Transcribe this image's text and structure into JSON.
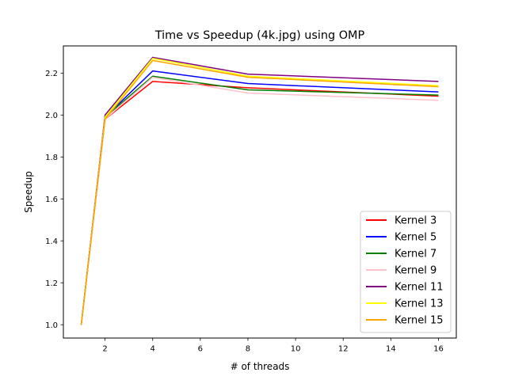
{
  "chart_data": {
    "type": "line",
    "title": "Time vs Speedup (4k.jpg) using OMP",
    "xlabel": "# of threads",
    "ylabel": "Speedup",
    "x": [
      1,
      2,
      4,
      8,
      16
    ],
    "xlim": [
      0.25,
      16.75
    ],
    "ylim": [
      0.9365,
      2.3295
    ],
    "xticks": [
      2,
      4,
      6,
      8,
      10,
      12,
      14,
      16
    ],
    "yticks": [
      1.0,
      1.2,
      1.4,
      1.6,
      1.8,
      2.0,
      2.2
    ],
    "grid": false,
    "legend_position": "lower right",
    "series": [
      {
        "name": "Kernel 3",
        "color": "#ff0000",
        "values": [
          1.0,
          1.98,
          2.16,
          2.13,
          2.09
        ]
      },
      {
        "name": "Kernel 5",
        "color": "#0000ff",
        "values": [
          1.0,
          1.99,
          2.21,
          2.15,
          2.11
        ]
      },
      {
        "name": "Kernel 7",
        "color": "#008000",
        "values": [
          1.0,
          1.99,
          2.185,
          2.12,
          2.095
        ]
      },
      {
        "name": "Kernel 9",
        "color": "#ffc0cb",
        "values": [
          1.0,
          1.98,
          2.18,
          2.105,
          2.07
        ]
      },
      {
        "name": "Kernel 11",
        "color": "#800080",
        "values": [
          1.0,
          2.0,
          2.275,
          2.195,
          2.16
        ]
      },
      {
        "name": "Kernel 13",
        "color": "#ffff00",
        "values": [
          1.0,
          1.99,
          2.27,
          2.185,
          2.14
        ]
      },
      {
        "name": "Kernel 15",
        "color": "#ffa500",
        "values": [
          1.0,
          1.98,
          2.26,
          2.18,
          2.135
        ]
      }
    ]
  }
}
